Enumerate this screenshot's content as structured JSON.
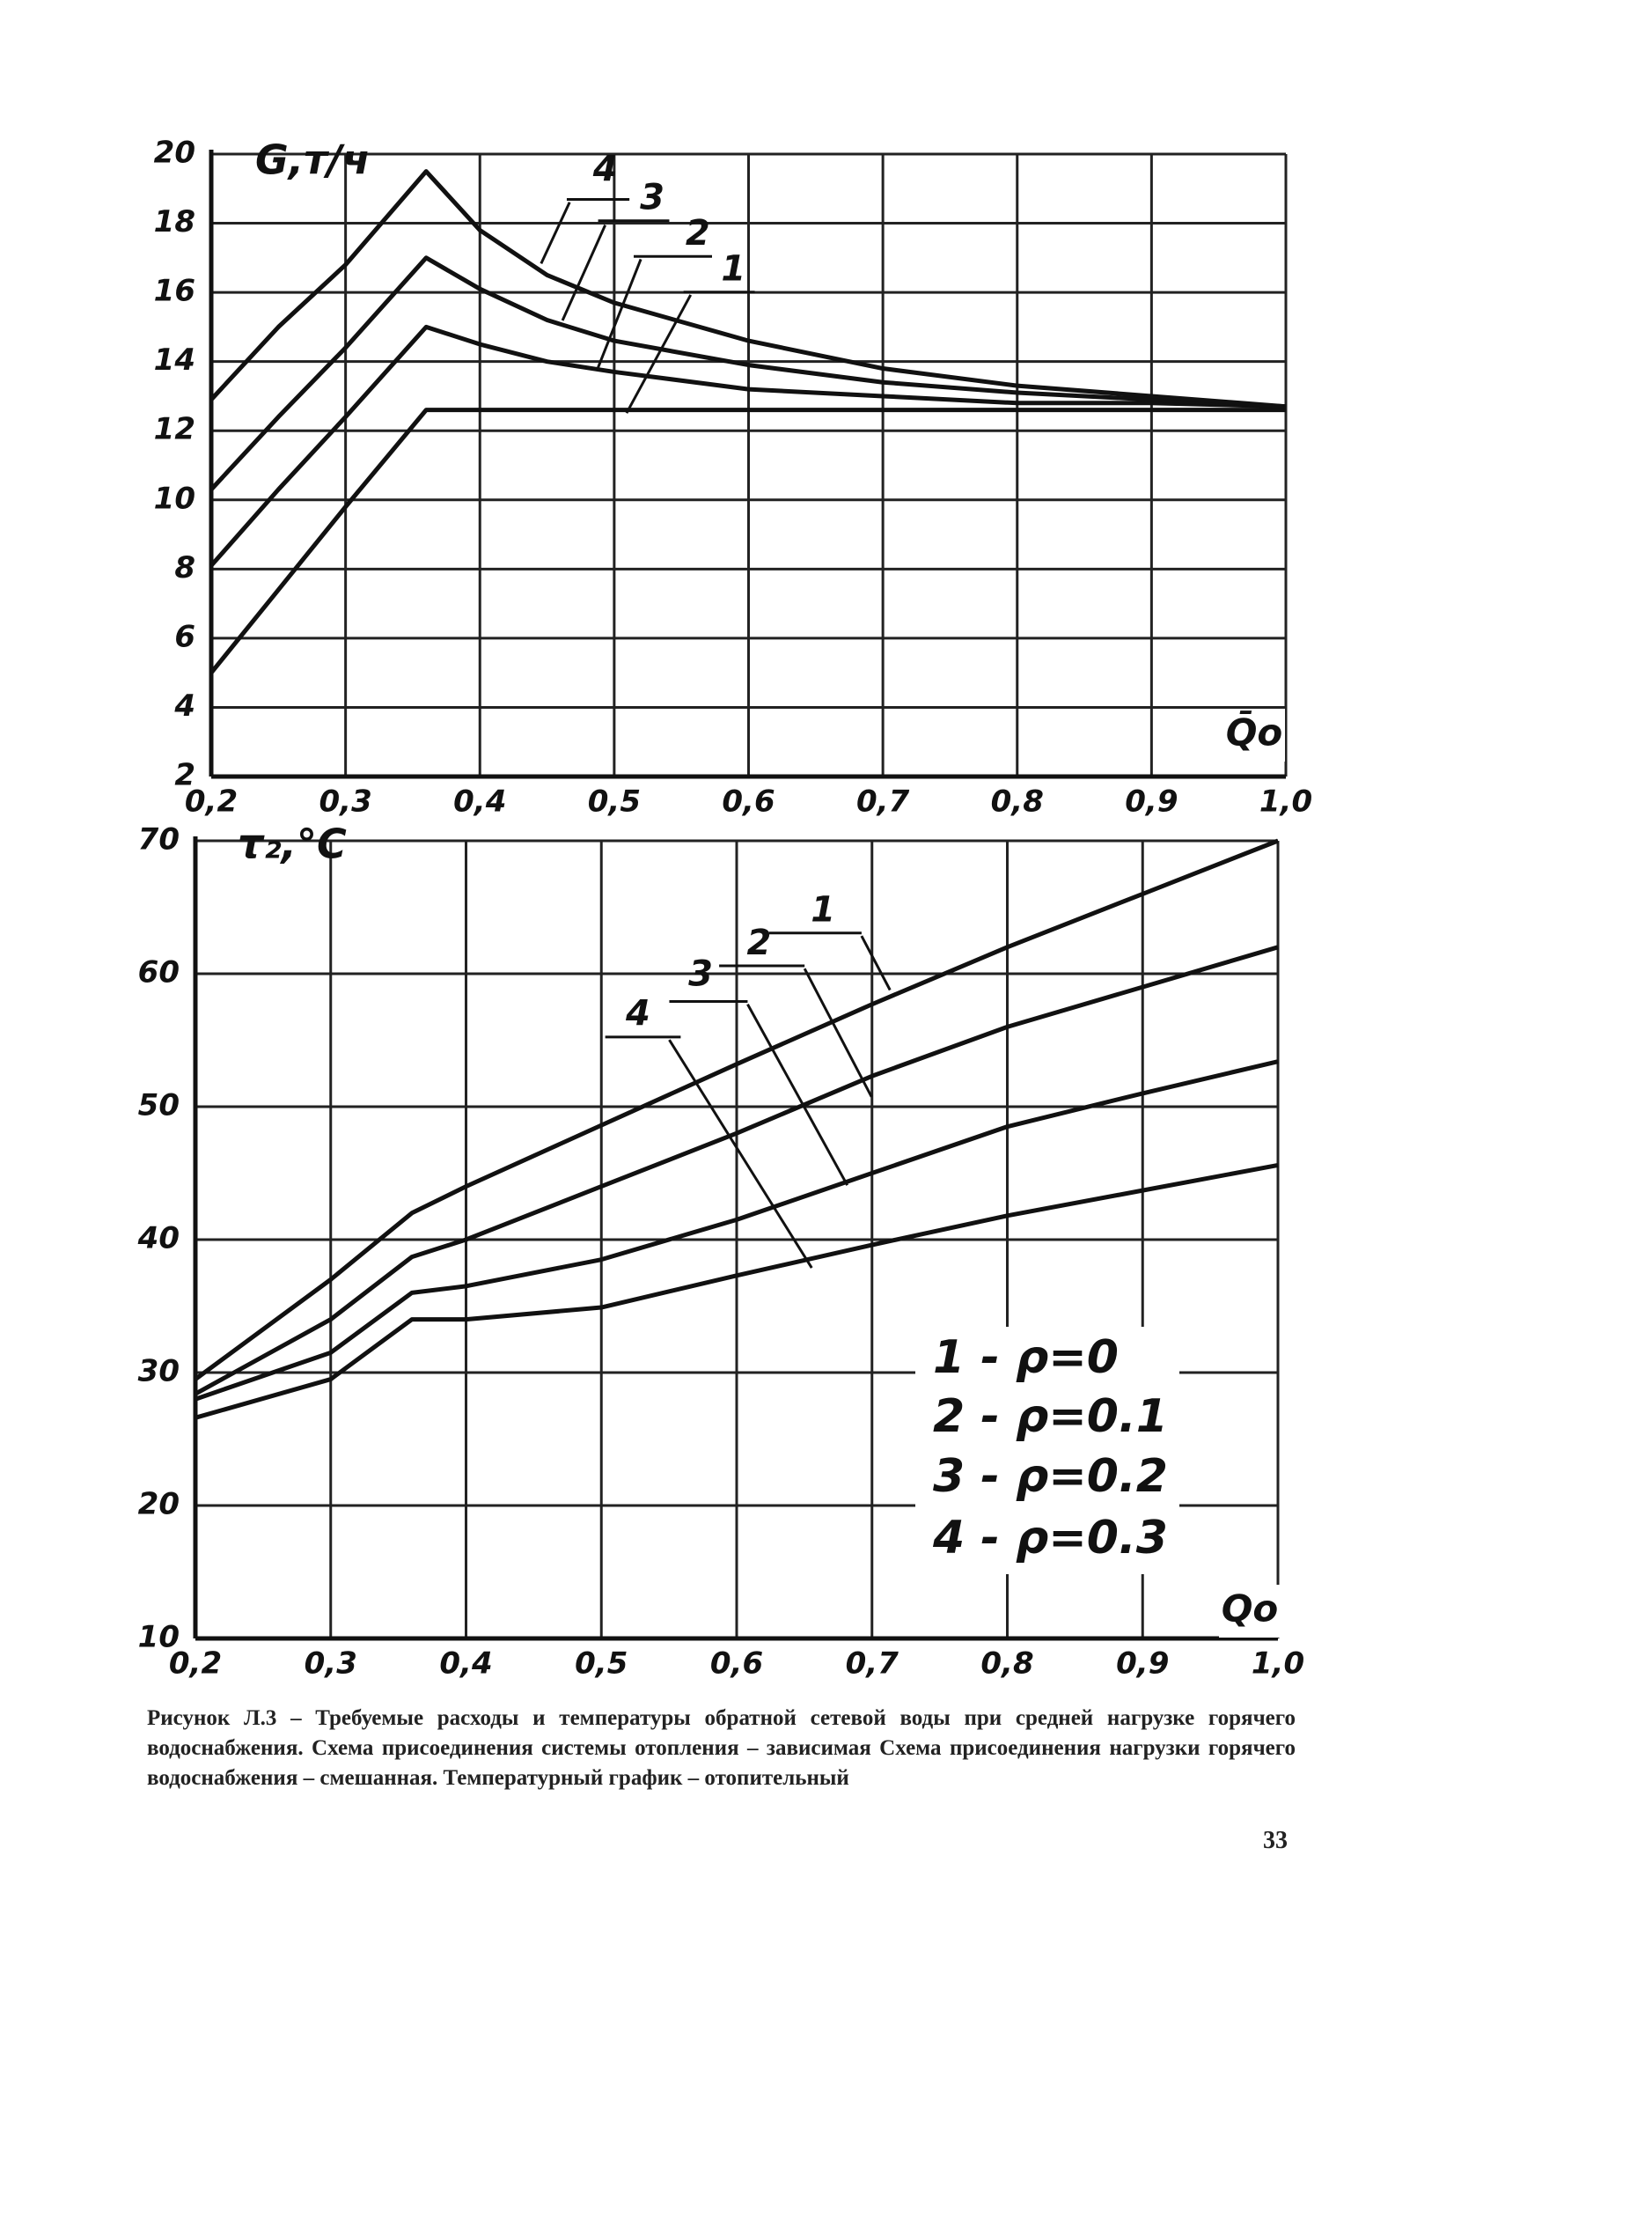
{
  "chart_data": [
    {
      "type": "line",
      "ylabel": "G,т/ч",
      "xlabel": "Q̄o",
      "x": [
        0.2,
        0.25,
        0.3,
        0.36,
        0.4,
        0.45,
        0.5,
        0.6,
        0.7,
        0.8,
        0.9,
        1.0
      ],
      "series": [
        {
          "name": "1",
          "color": "#111111",
          "values": [
            5.0,
            7.4,
            9.8,
            12.6,
            12.6,
            12.6,
            12.6,
            12.6,
            12.6,
            12.6,
            12.6,
            12.6
          ]
        },
        {
          "name": "2",
          "color": "#111111",
          "values": [
            8.1,
            10.3,
            12.4,
            15.0,
            14.5,
            14.0,
            13.7,
            13.2,
            13.0,
            12.8,
            12.8,
            12.7
          ]
        },
        {
          "name": "3",
          "color": "#111111",
          "values": [
            10.3,
            12.4,
            14.4,
            17.0,
            16.1,
            15.2,
            14.6,
            13.9,
            13.4,
            13.1,
            12.9,
            12.7
          ]
        },
        {
          "name": "4",
          "color": "#111111",
          "values": [
            12.9,
            15.0,
            16.8,
            19.5,
            17.8,
            16.5,
            15.7,
            14.6,
            13.8,
            13.3,
            13.0,
            12.7
          ]
        }
      ],
      "xlim": [
        0.2,
        1.0
      ],
      "xticks": [
        {
          "value": 0.2,
          "label": "0,2"
        },
        {
          "value": 0.3,
          "label": "0,3"
        },
        {
          "value": 0.4,
          "label": "0,4"
        },
        {
          "value": 0.5,
          "label": "0,5"
        },
        {
          "value": 0.6,
          "label": "0,6"
        },
        {
          "value": 0.7,
          "label": "0,7"
        },
        {
          "value": 0.8,
          "label": "0,8"
        },
        {
          "value": 0.9,
          "label": "0,9"
        },
        {
          "value": 1.0,
          "label": "1,0"
        }
      ],
      "ylim": [
        2,
        20
      ],
      "yticks": [
        2,
        4,
        6,
        8,
        10,
        12,
        14,
        16,
        18,
        20
      ],
      "grid": true
    },
    {
      "type": "line",
      "ylabel": "τ₂,°C",
      "xlabel": "Qo",
      "x": [
        0.2,
        0.3,
        0.36,
        0.4,
        0.5,
        0.6,
        0.7,
        0.8,
        0.9,
        1.0
      ],
      "series": [
        {
          "name": "1",
          "color": "#111111",
          "values": [
            29.5,
            37,
            42,
            44,
            48.6,
            53.2,
            57.7,
            62,
            66,
            70
          ]
        },
        {
          "name": "2",
          "color": "#111111",
          "values": [
            28.4,
            34,
            38.7,
            40,
            44,
            48,
            52.3,
            56,
            59,
            62
          ]
        },
        {
          "name": "3",
          "color": "#111111",
          "values": [
            28,
            31.5,
            36,
            36.5,
            38.5,
            41.5,
            45,
            48.5,
            51,
            53.4
          ]
        },
        {
          "name": "4",
          "color": "#111111",
          "values": [
            26.6,
            29.5,
            34,
            34,
            34.9,
            37.3,
            39.6,
            41.8,
            43.7,
            45.6
          ]
        }
      ],
      "legend": [
        "1 - ρ=0",
        "2 - ρ=0.1",
        "3 - ρ=0.2",
        "4 - ρ=0.3"
      ],
      "xlim": [
        0.2,
        1.0
      ],
      "xticks": [
        {
          "value": 0.2,
          "label": "0,2"
        },
        {
          "value": 0.3,
          "label": "0,3"
        },
        {
          "value": 0.4,
          "label": "0,4"
        },
        {
          "value": 0.5,
          "label": "0,5"
        },
        {
          "value": 0.6,
          "label": "0,6"
        },
        {
          "value": 0.7,
          "label": "0,7"
        },
        {
          "value": 0.8,
          "label": "0,8"
        },
        {
          "value": 0.9,
          "label": "0,9"
        },
        {
          "value": 1.0,
          "label": "1,0"
        }
      ],
      "ylim": [
        10,
        70
      ],
      "yticks": [
        10,
        20,
        30,
        40,
        50,
        60,
        70
      ],
      "grid": true
    }
  ],
  "caption": "Рисунок Л.3 – Требуемые расходы и температуры обратной сетевой воды при средней нагрузке горячего водоснабжения. Схема присоединения системы отопления – зависимая Схема присоединения нагрузки горячего водоснабжения – смешанная. Температурный график – отопительный",
  "page_number": "33"
}
